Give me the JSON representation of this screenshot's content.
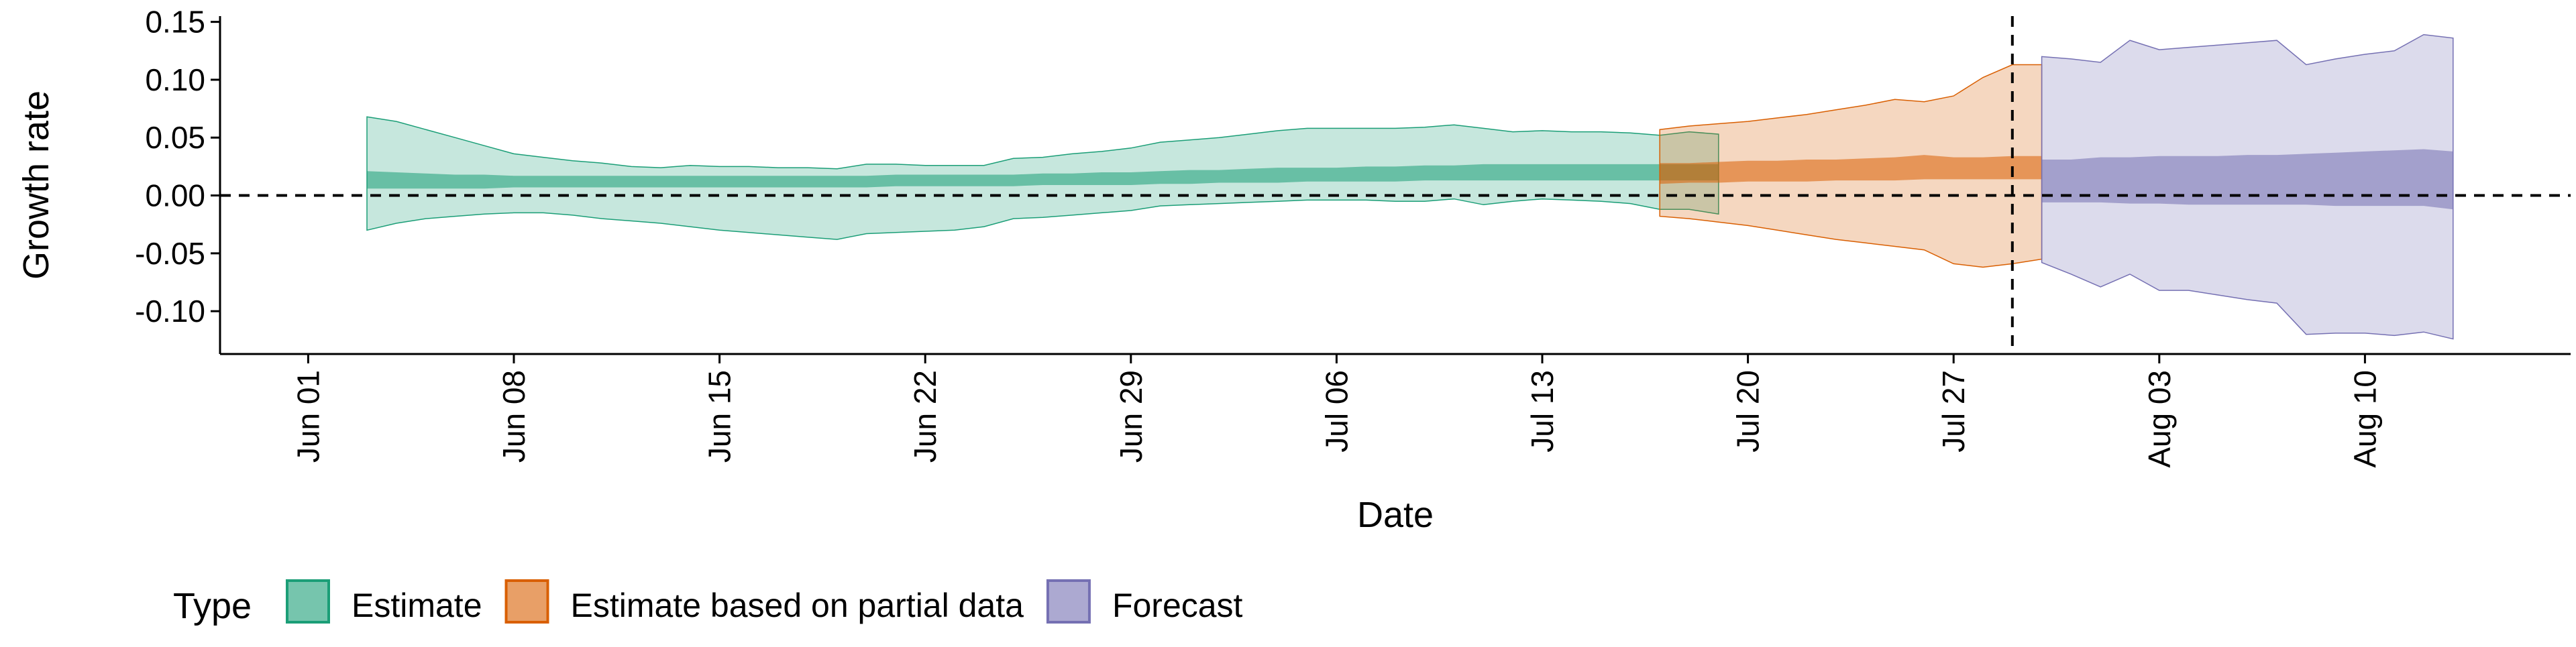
{
  "chart_data": {
    "type": "area",
    "title": "",
    "xlabel": "Date",
    "ylabel": "Growth rate",
    "x_tick_labels": [
      {
        "date": "2020-06-01",
        "label": "Jun 01"
      },
      {
        "date": "2020-06-08",
        "label": "Jun 08"
      },
      {
        "date": "2020-06-15",
        "label": "Jun 15"
      },
      {
        "date": "2020-06-22",
        "label": "Jun 22"
      },
      {
        "date": "2020-06-29",
        "label": "Jun 29"
      },
      {
        "date": "2020-07-06",
        "label": "Jul 06"
      },
      {
        "date": "2020-07-13",
        "label": "Jul 13"
      },
      {
        "date": "2020-07-20",
        "label": "Jul 20"
      },
      {
        "date": "2020-07-27",
        "label": "Jul 27"
      },
      {
        "date": "2020-08-03",
        "label": "Aug 03"
      },
      {
        "date": "2020-08-10",
        "label": "Aug 10"
      }
    ],
    "y_ticks": [
      -0.1,
      -0.05,
      0.0,
      0.05,
      0.1,
      0.15
    ],
    "y_tick_labels": [
      "-0.10",
      "-0.05",
      "0.00",
      "0.05",
      "0.10",
      "0.15"
    ],
    "xlim": [
      "2020-05-29",
      "2020-08-17"
    ],
    "ylim": [
      -0.137,
      0.155
    ],
    "reference_lines": {
      "horizontal_y": 0.0,
      "vertical_date": "2020-07-29"
    },
    "legend": {
      "title": "Type",
      "position": "bottom-left",
      "entries": [
        "Estimate",
        "Estimate based on partial data",
        "Forecast"
      ]
    },
    "series": [
      {
        "name": "Estimate",
        "fill_color": "#1b9e77",
        "start_date": "2020-06-03",
        "outer_lower": [
          -0.03,
          -0.024,
          -0.02,
          -0.018,
          -0.016,
          -0.015,
          -0.015,
          -0.017,
          -0.02,
          -0.022,
          -0.024,
          -0.027,
          -0.03,
          -0.032,
          -0.034,
          -0.036,
          -0.038,
          -0.033,
          -0.032,
          -0.031,
          -0.03,
          -0.027,
          -0.02,
          -0.019,
          -0.017,
          -0.015,
          -0.013,
          -0.009,
          -0.008,
          -0.007,
          -0.006,
          -0.005,
          -0.004,
          -0.004,
          -0.004,
          -0.005,
          -0.005,
          -0.003,
          -0.008,
          -0.005,
          -0.003,
          -0.004,
          -0.005,
          -0.007,
          -0.012,
          -0.012,
          -0.016
        ],
        "outer_upper": [
          0.068,
          0.064,
          0.057,
          0.05,
          0.043,
          0.036,
          0.033,
          0.03,
          0.028,
          0.025,
          0.024,
          0.026,
          0.025,
          0.025,
          0.024,
          0.024,
          0.023,
          0.027,
          0.027,
          0.026,
          0.026,
          0.026,
          0.032,
          0.033,
          0.036,
          0.038,
          0.041,
          0.046,
          0.048,
          0.05,
          0.053,
          0.056,
          0.058,
          0.058,
          0.058,
          0.058,
          0.059,
          0.061,
          0.058,
          0.055,
          0.056,
          0.055,
          0.055,
          0.054,
          0.052,
          0.055,
          0.053
        ],
        "inner_lower": [
          0.006,
          0.006,
          0.006,
          0.006,
          0.006,
          0.007,
          0.007,
          0.007,
          0.007,
          0.007,
          0.007,
          0.007,
          0.007,
          0.007,
          0.007,
          0.007,
          0.007,
          0.007,
          0.008,
          0.008,
          0.008,
          0.008,
          0.008,
          0.009,
          0.009,
          0.009,
          0.009,
          0.01,
          0.01,
          0.011,
          0.011,
          0.011,
          0.012,
          0.012,
          0.012,
          0.012,
          0.013,
          0.013,
          0.013,
          0.013,
          0.013,
          0.013,
          0.013,
          0.013,
          0.013,
          0.013,
          0.013
        ],
        "inner_upper": [
          0.021,
          0.02,
          0.019,
          0.018,
          0.018,
          0.017,
          0.017,
          0.017,
          0.017,
          0.017,
          0.017,
          0.017,
          0.017,
          0.017,
          0.017,
          0.017,
          0.017,
          0.017,
          0.018,
          0.018,
          0.018,
          0.018,
          0.018,
          0.019,
          0.019,
          0.02,
          0.02,
          0.021,
          0.022,
          0.022,
          0.023,
          0.024,
          0.024,
          0.024,
          0.025,
          0.025,
          0.026,
          0.026,
          0.027,
          0.027,
          0.027,
          0.027,
          0.027,
          0.027,
          0.027,
          0.027,
          0.027
        ]
      },
      {
        "name": "Estimate based on partial data",
        "fill_color": "#d95f02",
        "start_date": "2020-07-17",
        "outer_lower": [
          -0.018,
          -0.02,
          -0.023,
          -0.026,
          -0.03,
          -0.034,
          -0.038,
          -0.041,
          -0.044,
          -0.047,
          -0.059,
          -0.062,
          -0.059,
          -0.055
        ],
        "outer_upper": [
          0.057,
          0.06,
          0.062,
          0.064,
          0.067,
          0.07,
          0.074,
          0.078,
          0.083,
          0.081,
          0.086,
          0.102,
          0.113,
          0.113
        ],
        "inner_lower": [
          0.01,
          0.011,
          0.011,
          0.012,
          0.012,
          0.012,
          0.013,
          0.013,
          0.013,
          0.014,
          0.014,
          0.014,
          0.014,
          0.014
        ],
        "inner_upper": [
          0.028,
          0.028,
          0.029,
          0.03,
          0.03,
          0.031,
          0.031,
          0.032,
          0.033,
          0.035,
          0.033,
          0.033,
          0.034,
          0.034
        ]
      },
      {
        "name": "Forecast",
        "fill_color": "#7570b3",
        "start_date": "2020-07-30",
        "outer_lower": [
          -0.058,
          -0.068,
          -0.079,
          -0.068,
          -0.082,
          -0.082,
          -0.086,
          -0.09,
          -0.093,
          -0.12,
          -0.119,
          -0.119,
          -0.121,
          -0.118,
          -0.124
        ],
        "outer_upper": [
          0.12,
          0.118,
          0.115,
          0.134,
          0.126,
          0.128,
          0.13,
          0.132,
          0.134,
          0.113,
          0.118,
          0.122,
          0.125,
          0.139,
          0.136
        ],
        "inner_lower": [
          -0.006,
          -0.006,
          -0.006,
          -0.007,
          -0.007,
          -0.008,
          -0.008,
          -0.008,
          -0.008,
          -0.008,
          -0.009,
          -0.009,
          -0.009,
          -0.009,
          -0.012
        ],
        "inner_upper": [
          0.031,
          0.031,
          0.033,
          0.033,
          0.034,
          0.034,
          0.034,
          0.035,
          0.035,
          0.036,
          0.037,
          0.038,
          0.039,
          0.04,
          0.038
        ]
      }
    ]
  }
}
